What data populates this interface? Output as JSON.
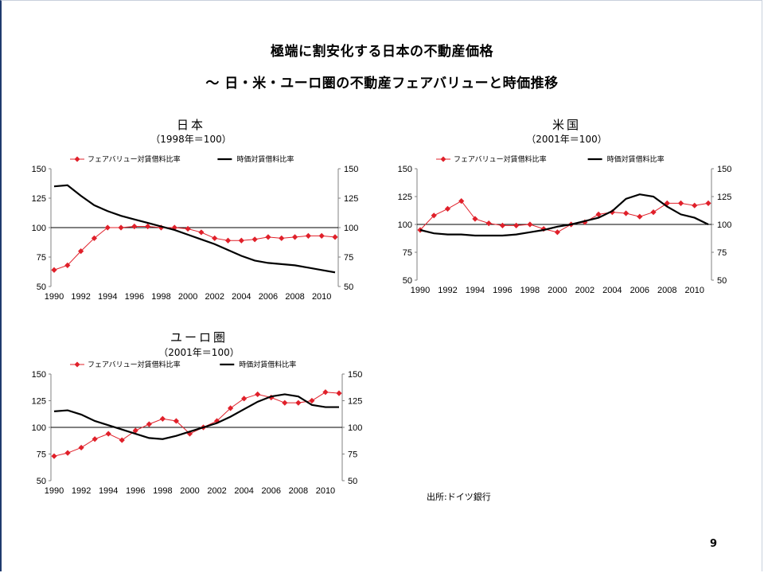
{
  "title": "極端に割安化する日本の不動産価格",
  "subtitle": "～ 日・米・ユーロ圏の不動産フェアバリューと時価推移",
  "source": "出所:ドイツ銀行",
  "page_number": "9",
  "colors": {
    "fair_value": "#e0202a",
    "market_value": "#000000",
    "axis": "#808080"
  },
  "chart_data": [
    {
      "type": "line",
      "title": "日本",
      "subtitle": "（1998年＝100）",
      "x": [
        1990,
        1991,
        1992,
        1993,
        1994,
        1995,
        1996,
        1997,
        1998,
        1999,
        2000,
        2001,
        2002,
        2003,
        2004,
        2005,
        2006,
        2007,
        2008,
        2009,
        2010,
        2011
      ],
      "x_ticks": [
        1990,
        1992,
        1994,
        1996,
        1998,
        2000,
        2002,
        2004,
        2006,
        2008,
        2010
      ],
      "ylim": [
        50,
        150
      ],
      "y_ticks": [
        50,
        75,
        100,
        125,
        150
      ],
      "grid": false,
      "legend": "top",
      "series": [
        {
          "name": "フェアバリュー対賃借料比率",
          "marker": "diamond",
          "values": [
            64,
            68,
            80,
            91,
            100,
            100,
            101,
            101,
            100,
            100,
            99,
            96,
            91,
            89,
            89,
            90,
            92,
            91,
            92,
            93,
            93,
            92
          ]
        },
        {
          "name": "時価対賃借料比率",
          "marker": "none",
          "values": [
            135,
            136,
            127,
            119,
            114,
            110,
            107,
            104,
            101,
            98,
            94,
            90,
            86,
            81,
            76,
            72,
            70,
            69,
            68,
            66,
            64,
            62
          ]
        }
      ]
    },
    {
      "type": "line",
      "title": "米国",
      "subtitle": "（2001年＝100）",
      "x": [
        1990,
        1991,
        1992,
        1993,
        1994,
        1995,
        1996,
        1997,
        1998,
        1999,
        2000,
        2001,
        2002,
        2003,
        2004,
        2005,
        2006,
        2007,
        2008,
        2009,
        2010,
        2011
      ],
      "x_ticks": [
        1990,
        1992,
        1994,
        1996,
        1998,
        2000,
        2002,
        2004,
        2006,
        2008,
        2010
      ],
      "ylim": [
        50,
        150
      ],
      "y_ticks": [
        50,
        75,
        100,
        125,
        150
      ],
      "grid": false,
      "legend": "top",
      "series": [
        {
          "name": "フェアバリュー対賃借料比率",
          "marker": "diamond",
          "values": [
            95,
            108,
            114,
            121,
            105,
            101,
            99,
            99,
            100,
            96,
            93,
            100,
            102,
            109,
            111,
            110,
            107,
            111,
            119,
            119,
            117,
            119
          ]
        },
        {
          "name": "時価対賃借料比率",
          "marker": "none",
          "values": [
            95,
            92,
            91,
            91,
            90,
            90,
            90,
            91,
            93,
            95,
            98,
            100,
            103,
            106,
            112,
            123,
            127,
            125,
            116,
            109,
            106,
            100
          ]
        }
      ]
    },
    {
      "type": "line",
      "title": "ユーロ圏",
      "subtitle": "（2001年＝100）",
      "x": [
        1990,
        1991,
        1992,
        1993,
        1994,
        1995,
        1996,
        1997,
        1998,
        1999,
        2000,
        2001,
        2002,
        2003,
        2004,
        2005,
        2006,
        2007,
        2008,
        2009,
        2010,
        2011
      ],
      "x_ticks": [
        1990,
        1992,
        1994,
        1996,
        1998,
        2000,
        2002,
        2004,
        2006,
        2008,
        2010
      ],
      "ylim": [
        50,
        150
      ],
      "y_ticks": [
        50,
        75,
        100,
        125,
        150
      ],
      "grid": false,
      "legend": "top",
      "series": [
        {
          "name": "フェアバリュー対賃借料比率",
          "marker": "diamond",
          "values": [
            73,
            76,
            81,
            89,
            94,
            88,
            97,
            103,
            108,
            106,
            94,
            100,
            106,
            118,
            127,
            131,
            128,
            123,
            123,
            125,
            133,
            132
          ]
        },
        {
          "name": "時価対賃借料比率",
          "marker": "none",
          "values": [
            115,
            116,
            112,
            106,
            102,
            98,
            94,
            90,
            89,
            92,
            96,
            100,
            104,
            110,
            117,
            124,
            129,
            131,
            129,
            121,
            119,
            119
          ]
        }
      ]
    }
  ]
}
